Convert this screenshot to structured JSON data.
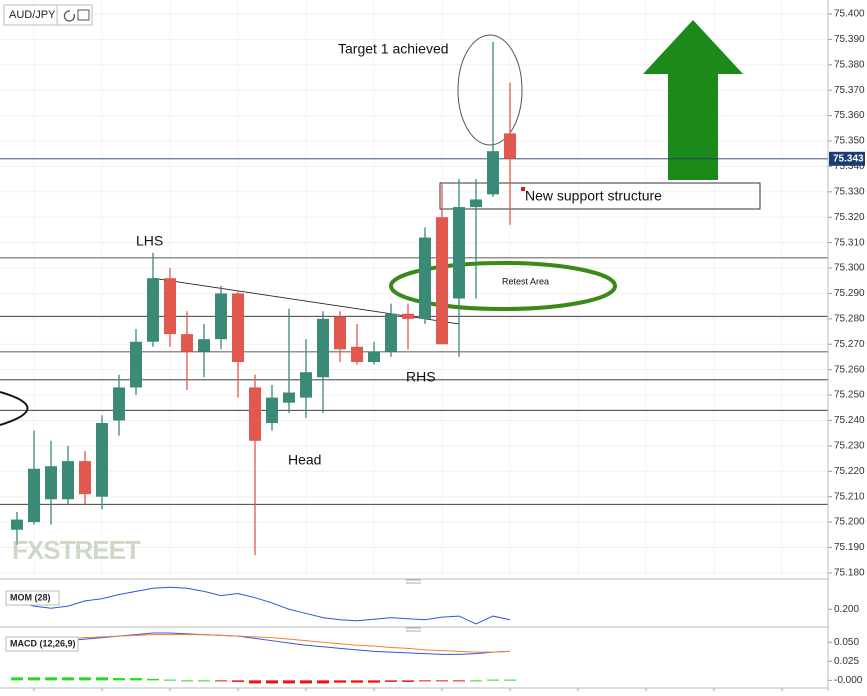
{
  "header": {
    "symbol": "AUD/JPY"
  },
  "chart_data": [
    {
      "type": "candlestick",
      "open": [
        75.197,
        75.2,
        75.209,
        75.209,
        75.224,
        75.21,
        75.24,
        75.253,
        75.271,
        75.296,
        75.274,
        75.267,
        75.272,
        75.29,
        75.253,
        75.239,
        75.247,
        75.249,
        75.257,
        75.281,
        75.269,
        75.263,
        75.267,
        75.282,
        75.28,
        75.32,
        75.288,
        75.324,
        75.329,
        75.353
      ],
      "high": [
        75.204,
        75.236,
        75.232,
        75.23,
        75.228,
        75.242,
        75.258,
        75.276,
        75.306,
        75.3,
        75.283,
        75.278,
        75.293,
        75.291,
        75.258,
        75.254,
        75.284,
        75.272,
        75.283,
        75.283,
        75.278,
        75.271,
        75.286,
        75.286,
        75.316,
        75.333,
        75.335,
        75.335,
        75.389,
        75.373
      ],
      "low": [
        75.191,
        75.199,
        75.199,
        75.207,
        75.207,
        75.205,
        75.234,
        75.25,
        75.269,
        75.269,
        75.252,
        75.257,
        75.268,
        75.249,
        75.187,
        75.236,
        75.243,
        75.241,
        75.243,
        75.263,
        75.262,
        75.262,
        75.265,
        75.268,
        75.278,
        75.27,
        75.265,
        75.288,
        75.328,
        75.317
      ],
      "close": [
        75.201,
        75.221,
        75.222,
        75.224,
        75.211,
        75.239,
        75.253,
        75.271,
        75.296,
        75.274,
        75.267,
        75.272,
        75.29,
        75.263,
        75.232,
        75.249,
        75.251,
        75.259,
        75.28,
        75.268,
        75.263,
        75.267,
        75.282,
        75.28,
        75.312,
        75.27,
        75.324,
        75.327,
        75.346,
        75.343
      ],
      "up_color": "#3b8a78",
      "down_color": "#e0584e",
      "ylim": [
        75.178,
        75.4055
      ],
      "yticks": [
        {
          "value": 75.18,
          "label": "75.180"
        },
        {
          "value": 75.19,
          "label": "75.190"
        },
        {
          "value": 75.2,
          "label": "75.200"
        },
        {
          "value": 75.21,
          "label": "75.210"
        },
        {
          "value": 75.22,
          "label": "75.220"
        },
        {
          "value": 75.23,
          "label": "75.230"
        },
        {
          "value": 75.24,
          "label": "75.240"
        },
        {
          "value": 75.25,
          "label": "75.250"
        },
        {
          "value": 75.26,
          "label": "75.260"
        },
        {
          "value": 75.27,
          "label": "75.270"
        },
        {
          "value": 75.28,
          "label": "75.280"
        },
        {
          "value": 75.29,
          "label": "75.290"
        },
        {
          "value": 75.3,
          "label": "75.300"
        },
        {
          "value": 75.31,
          "label": "75.310"
        },
        {
          "value": 75.32,
          "label": "75.320"
        },
        {
          "value": 75.33,
          "label": "75.330"
        },
        {
          "value": 75.34,
          "label": "75.340"
        },
        {
          "value": 75.35,
          "label": "75.350"
        },
        {
          "value": 75.36,
          "label": "75.360"
        },
        {
          "value": 75.37,
          "label": "75.370"
        },
        {
          "value": 75.38,
          "label": "75.380"
        },
        {
          "value": 75.39,
          "label": "75.390"
        },
        {
          "value": 75.4,
          "label": "75.400"
        }
      ],
      "grid": true,
      "last_price": 75.343,
      "levels": [
        75.304,
        75.281,
        75.267,
        75.256,
        75.244,
        75.207
      ],
      "trendline": [
        75.296,
        75.278
      ],
      "annotations": [
        "Target 1 achieved",
        "LHS",
        "Head",
        "RHS",
        "New support structure",
        "Retest Area"
      ],
      "watermark": "FXSTREET"
    },
    {
      "type": "line",
      "title": "MOM (28)",
      "color": "#3355dd",
      "values": [
        0.214,
        0.206,
        0.202,
        0.206,
        0.216,
        0.22,
        0.228,
        0.234,
        0.24,
        0.242,
        0.24,
        0.234,
        0.226,
        0.23,
        0.222,
        0.212,
        0.2,
        0.192,
        0.184,
        0.18,
        0.178,
        0.181,
        0.184,
        0.182,
        0.18,
        0.185,
        0.187,
        0.172,
        0.187,
        0.18
      ],
      "ylim": [
        0.17,
        0.25
      ],
      "yticks": [
        {
          "value": 0.2,
          "label": "0.200"
        }
      ]
    },
    {
      "type": "macd",
      "title": "MACD (12,26,9)",
      "series": [
        {
          "color": "#3355dd",
          "values": [
            0.046,
            0.048,
            0.05,
            0.052,
            0.054,
            0.056,
            0.058,
            0.06,
            0.062,
            0.062,
            0.061,
            0.06,
            0.059,
            0.058,
            0.055,
            0.052,
            0.049,
            0.046,
            0.044,
            0.042,
            0.04,
            0.038,
            0.037,
            0.036,
            0.035,
            0.034,
            0.034,
            0.035,
            0.037,
            0.038
          ]
        },
        {
          "color": "#f08030",
          "values": [
            0.052,
            0.053,
            0.054,
            0.055,
            0.056,
            0.057,
            0.058,
            0.059,
            0.06,
            0.06,
            0.06,
            0.06,
            0.059,
            0.058,
            0.057,
            0.056,
            0.054,
            0.052,
            0.05,
            0.048,
            0.046,
            0.045,
            0.043,
            0.042,
            0.04,
            0.039,
            0.038,
            0.037,
            0.037,
            0.038
          ]
        }
      ],
      "histogram": [
        0.004,
        0.004,
        0.004,
        0.004,
        0.004,
        0.004,
        0.003,
        0.003,
        0.002,
        0.001,
        0.0,
        0.0,
        -0.001,
        -0.002,
        -0.004,
        -0.004,
        -0.004,
        -0.004,
        -0.004,
        -0.003,
        -0.003,
        -0.003,
        -0.002,
        -0.002,
        -0.001,
        -0.001,
        -0.001,
        0.0,
        0.001,
        0.001
      ],
      "hist_up_color": "#22dd22",
      "hist_down_color": "#ee1111",
      "ylim": [
        -0.01,
        0.066
      ],
      "yticks": [
        {
          "value": 0.05,
          "label": "0.050"
        },
        {
          "value": 0.025,
          "label": "0.025"
        },
        {
          "value": 0,
          "label": "-0.000"
        }
      ]
    }
  ]
}
